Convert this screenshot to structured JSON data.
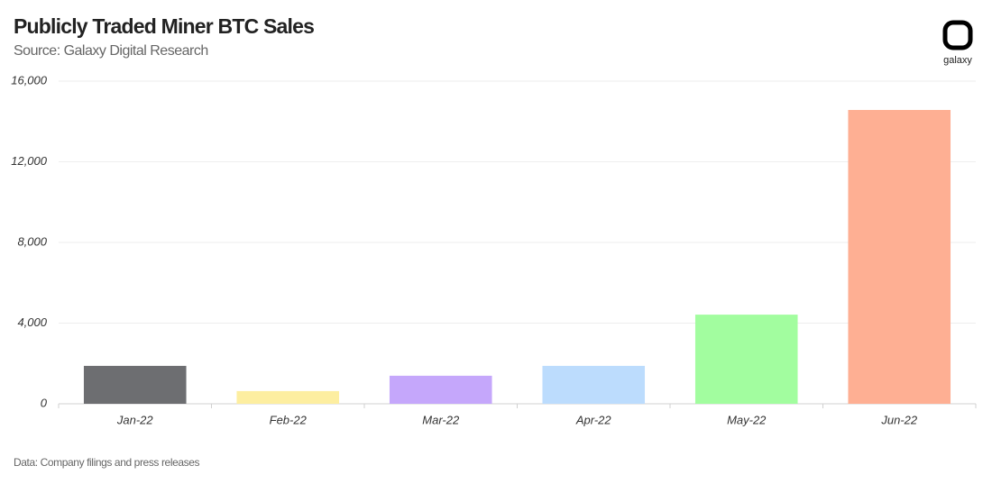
{
  "chart_data": {
    "type": "bar",
    "title": "Publicly Traded Miner BTC Sales",
    "subtitle": "Source: Galaxy Digital Research",
    "note": "Data: Company filings and press releases",
    "logo_text": "galaxy",
    "categories": [
      "Jan-22",
      "Feb-22",
      "Mar-22",
      "Apr-22",
      "May-22",
      "Jun-22"
    ],
    "values": [
      1880,
      630,
      1390,
      1880,
      4420,
      14570
    ],
    "colors": [
      "#6d6e71",
      "#fdeea0",
      "#c5a7fb",
      "#bcdcfd",
      "#a2fd9f",
      "#feaf93"
    ],
    "ylim": [
      0,
      16000
    ],
    "yticks": [
      0,
      {
        "value": 4000,
        "label": "4,000"
      },
      {
        "value": 8000,
        "label": "8,000"
      },
      {
        "value": 12000,
        "label": "12,000"
      },
      {
        "value": 16000,
        "label": "16,000"
      }
    ],
    "grid": true
  }
}
